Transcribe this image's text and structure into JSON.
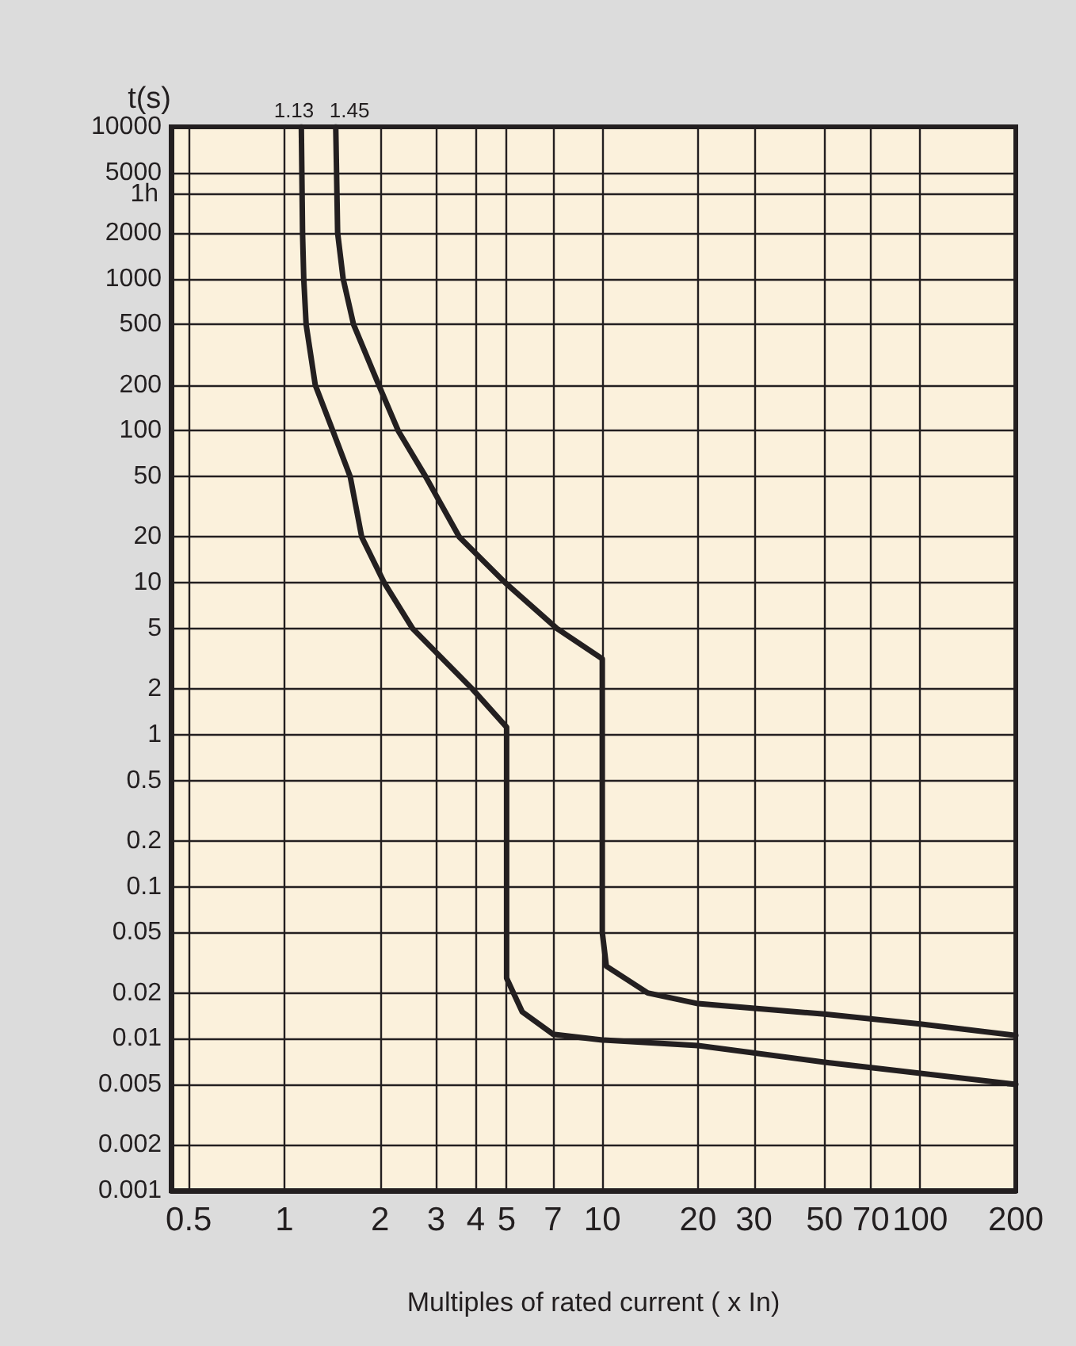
{
  "chart_data": {
    "type": "line",
    "ylabel": "t(s)",
    "xlabel": "Multiples of rated current ( x In)",
    "log": "xy",
    "grid": true,
    "xlim": [
      0.44,
      200
    ],
    "ylim": [
      0.001,
      10000
    ],
    "xticks": [
      0.5,
      1,
      2,
      3,
      4,
      5,
      7,
      10,
      20,
      30,
      50,
      70,
      100,
      200
    ],
    "yticks": [
      0.001,
      0.002,
      0.005,
      0.01,
      0.02,
      0.05,
      0.1,
      0.2,
      0.5,
      1,
      2,
      5,
      10,
      20,
      50,
      100,
      200,
      500,
      1000,
      2000,
      5000,
      10000
    ],
    "ref_lines": [
      {
        "axis": "y",
        "value": 3600,
        "label": "1h"
      }
    ],
    "annotations": [
      {
        "text": "1.13",
        "x": 1.13,
        "y": 10000
      },
      {
        "text": "1.45",
        "x": 1.45,
        "y": 10000
      }
    ],
    "series": [
      {
        "color": "#231f20",
        "x": [
          1.13,
          1.14,
          1.15,
          1.17,
          1.25,
          1.42,
          1.61,
          1.75,
          2.06,
          2.53,
          3.9,
          5,
          5,
          5.6,
          7,
          10,
          20,
          50,
          200
        ],
        "values": [
          10000,
          2000,
          1000,
          500,
          200,
          100,
          50,
          20,
          10,
          5,
          2,
          1.12,
          0.025,
          0.015,
          0.0107,
          0.0098,
          0.009,
          0.007,
          0.005
        ]
      },
      {
        "color": "#231f20",
        "x": [
          1.45,
          1.47,
          1.53,
          1.65,
          1.98,
          2.28,
          2.78,
          3.55,
          4.95,
          7.2,
          10,
          10,
          10.3,
          13.9,
          20,
          50,
          100,
          200
        ],
        "values": [
          10000,
          2000,
          1000,
          500,
          200,
          100,
          50,
          20,
          10,
          5,
          3.16,
          0.05,
          0.03,
          0.02,
          0.017,
          0.0145,
          0.0125,
          0.0105
        ]
      }
    ]
  }
}
